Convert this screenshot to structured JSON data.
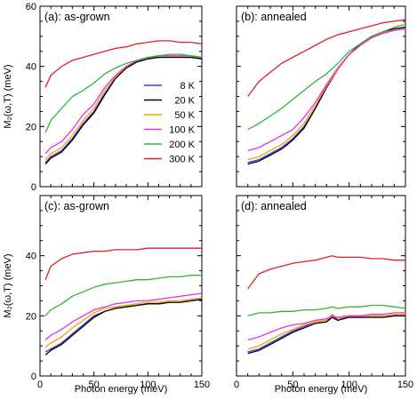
{
  "chart_data": [
    {
      "type": "line",
      "panel_label": "(a): as-grown",
      "xlabel": "",
      "ylabel": "M₂(ω,T) (meV)",
      "xlim": [
        0,
        150
      ],
      "ylim": [
        0,
        60
      ],
      "xticks": [],
      "yticks": [
        0,
        20,
        40,
        60
      ],
      "legend": {
        "placement": "center-right",
        "entries": [
          "8 K",
          "20 K",
          "50 K",
          "100 K",
          "200 K",
          "300 K"
        ]
      },
      "series": [
        {
          "name": "8 K",
          "color": "#3a3adf",
          "x": [
            5,
            10,
            20,
            30,
            40,
            50,
            60,
            70,
            80,
            90,
            100,
            110,
            120,
            130,
            140,
            150
          ],
          "y": [
            8,
            10,
            12,
            16,
            21,
            25,
            31,
            36,
            39.5,
            41.5,
            42.5,
            43,
            43,
            43,
            43,
            42.5
          ]
        },
        {
          "name": "20 K",
          "color": "#000000",
          "x": [
            5,
            10,
            20,
            30,
            40,
            50,
            60,
            70,
            80,
            90,
            100,
            110,
            120,
            130,
            140,
            150
          ],
          "y": [
            7.5,
            9.5,
            11.5,
            15.5,
            20.5,
            24.5,
            30.5,
            36,
            39.5,
            41.5,
            42.5,
            43,
            43,
            43,
            43,
            42.5
          ]
        },
        {
          "name": "50 K",
          "color": "#f5a000",
          "x": [
            5,
            10,
            20,
            30,
            40,
            50,
            60,
            70,
            80,
            90,
            100,
            110,
            120,
            130,
            140,
            150
          ],
          "y": [
            9,
            11,
            13,
            17,
            22,
            26,
            32,
            36.5,
            40,
            42,
            43,
            43.5,
            43.5,
            43.5,
            43.5,
            43
          ]
        },
        {
          "name": "100 K",
          "color": "#ee2ee2",
          "x": [
            5,
            10,
            20,
            30,
            40,
            50,
            60,
            70,
            80,
            90,
            100,
            110,
            120,
            130,
            140,
            150
          ],
          "y": [
            11,
            13,
            15,
            19,
            24,
            27.5,
            33,
            37,
            40,
            42,
            43,
            43.5,
            43.5,
            43.5,
            43.5,
            43
          ]
        },
        {
          "name": "200 K",
          "color": "#2db82d",
          "x": [
            5,
            10,
            20,
            30,
            40,
            50,
            60,
            70,
            80,
            90,
            100,
            110,
            120,
            130,
            140,
            150
          ],
          "y": [
            18,
            22,
            26,
            30,
            32,
            34.5,
            37.5,
            39.5,
            41,
            42,
            43,
            43.5,
            44,
            44,
            43.5,
            43
          ]
        },
        {
          "name": "300 K",
          "color": "#e02020",
          "x": [
            5,
            10,
            20,
            30,
            40,
            50,
            60,
            70,
            80,
            90,
            100,
            110,
            120,
            130,
            140,
            150
          ],
          "y": [
            33,
            37,
            40,
            42,
            43,
            44,
            45,
            46,
            46.5,
            47.5,
            48,
            48.5,
            48.5,
            48,
            48,
            47.5
          ]
        }
      ]
    },
    {
      "type": "line",
      "panel_label": "(b): annealed",
      "xlabel": "",
      "ylabel": "",
      "xlim": [
        0,
        150
      ],
      "ylim": [
        0,
        60
      ],
      "xticks": [],
      "yticks": [],
      "series": [
        {
          "name": "8 K",
          "color": "#3a3adf",
          "x": [
            10,
            20,
            30,
            40,
            50,
            60,
            70,
            80,
            90,
            100,
            110,
            120,
            130,
            140,
            150
          ],
          "y": [
            8,
            9,
            11,
            13,
            16,
            20,
            26,
            33,
            39,
            44,
            47,
            49.5,
            51,
            52,
            52.5
          ]
        },
        {
          "name": "20 K",
          "color": "#000000",
          "x": [
            10,
            20,
            30,
            40,
            50,
            60,
            70,
            80,
            90,
            100,
            110,
            120,
            130,
            140,
            150
          ],
          "y": [
            7.5,
            8.5,
            10.5,
            12.5,
            15.5,
            19.5,
            26,
            33,
            39,
            44,
            47.5,
            50,
            51.5,
            52.5,
            53
          ]
        },
        {
          "name": "50 K",
          "color": "#f5a000",
          "x": [
            10,
            20,
            30,
            40,
            50,
            60,
            70,
            80,
            90,
            100,
            110,
            120,
            130,
            140,
            150
          ],
          "y": [
            9,
            10,
            12,
            14,
            17,
            21,
            27,
            33.5,
            39,
            44,
            47,
            49.5,
            51,
            52,
            52.5
          ]
        },
        {
          "name": "100 K",
          "color": "#ee2ee2",
          "x": [
            10,
            20,
            30,
            40,
            50,
            60,
            70,
            80,
            90,
            100,
            110,
            120,
            130,
            140,
            150
          ],
          "y": [
            12,
            13,
            15,
            17,
            19,
            23,
            28,
            34,
            39.5,
            44,
            47,
            49.5,
            51,
            52,
            52.5
          ]
        },
        {
          "name": "200 K",
          "color": "#2db82d",
          "x": [
            10,
            20,
            30,
            40,
            50,
            60,
            70,
            80,
            90,
            100,
            110,
            120,
            130,
            140,
            150
          ],
          "y": [
            19,
            21,
            23.5,
            26,
            29,
            32,
            35,
            37.5,
            41,
            45,
            47.5,
            50,
            51.5,
            53,
            54
          ]
        },
        {
          "name": "300 K",
          "color": "#e02020",
          "x": [
            10,
            20,
            30,
            40,
            50,
            60,
            70,
            80,
            90,
            100,
            110,
            120,
            130,
            140,
            150
          ],
          "y": [
            30,
            35,
            38,
            41,
            43,
            45,
            47,
            49,
            50.5,
            51.5,
            52.5,
            53.5,
            54.5,
            55,
            55.5
          ]
        }
      ]
    },
    {
      "type": "line",
      "panel_label": "(c): as-grown",
      "xlabel": "Photon energy (meV)",
      "ylabel": "M₂(ω,T) (meV)",
      "xlim": [
        0,
        150
      ],
      "ylim": [
        0,
        60
      ],
      "xticks": [
        0,
        50,
        100,
        150
      ],
      "yticks": [
        0,
        20,
        40
      ],
      "series": [
        {
          "name": "8 K",
          "color": "#3a3adf",
          "x": [
            5,
            10,
            20,
            30,
            40,
            50,
            60,
            70,
            80,
            90,
            100,
            110,
            120,
            130,
            140,
            150
          ],
          "y": [
            8,
            9,
            11,
            14,
            17,
            20,
            21.5,
            22.5,
            23,
            23.5,
            24,
            24,
            24.5,
            24.5,
            25,
            25.5
          ]
        },
        {
          "name": "20 K",
          "color": "#000000",
          "x": [
            5,
            10,
            20,
            30,
            40,
            50,
            60,
            70,
            80,
            90,
            100,
            110,
            120,
            130,
            140,
            150
          ],
          "y": [
            7,
            8.5,
            10.5,
            13.5,
            16.5,
            19.5,
            21.5,
            22.5,
            23,
            23.5,
            24,
            24,
            24.5,
            24.5,
            25,
            25.5
          ]
        },
        {
          "name": "50 K",
          "color": "#f5a000",
          "x": [
            5,
            10,
            20,
            30,
            40,
            50,
            60,
            70,
            80,
            90,
            100,
            110,
            120,
            130,
            140,
            150
          ],
          "y": [
            9.5,
            11,
            13,
            16,
            18.5,
            21,
            22.5,
            23,
            23.5,
            24,
            24.5,
            24.5,
            25,
            25,
            25.5,
            26
          ]
        },
        {
          "name": "100 K",
          "color": "#ee2ee2",
          "x": [
            5,
            10,
            20,
            30,
            40,
            50,
            60,
            70,
            80,
            90,
            100,
            110,
            120,
            130,
            140,
            150
          ],
          "y": [
            12,
            13.5,
            15.5,
            18,
            20,
            22,
            23,
            24,
            24.5,
            25,
            25,
            25.5,
            26,
            26.5,
            27,
            27.5
          ]
        },
        {
          "name": "200 K",
          "color": "#2db82d",
          "x": [
            5,
            10,
            20,
            30,
            40,
            50,
            60,
            70,
            80,
            90,
            100,
            110,
            120,
            130,
            140,
            150
          ],
          "y": [
            20,
            22,
            24,
            26.5,
            28,
            29.5,
            30.5,
            31,
            31.5,
            32,
            32,
            32.5,
            33,
            33,
            33.5,
            33.5
          ]
        },
        {
          "name": "300 K",
          "color": "#e02020",
          "x": [
            5,
            10,
            20,
            30,
            40,
            50,
            60,
            70,
            80,
            90,
            100,
            110,
            120,
            130,
            140,
            150
          ],
          "y": [
            32,
            36.5,
            39,
            40.5,
            41,
            41.5,
            41.5,
            42,
            42,
            42,
            42.5,
            42.5,
            42.5,
            42.5,
            42.5,
            42.5
          ]
        }
      ]
    },
    {
      "type": "line",
      "panel_label": "(d): annealed",
      "xlabel": "Photon energy (meV)",
      "ylabel": "",
      "xlim": [
        0,
        150
      ],
      "ylim": [
        0,
        60
      ],
      "xticks": [
        0,
        50,
        100,
        150
      ],
      "yticks": [],
      "series": [
        {
          "name": "8 K",
          "color": "#3a3adf",
          "x": [
            10,
            20,
            30,
            40,
            50,
            60,
            70,
            80,
            85,
            90,
            100,
            110,
            120,
            130,
            140,
            150
          ],
          "y": [
            8,
            9,
            11,
            13,
            15,
            16.5,
            18,
            18.5,
            19.5,
            19,
            19.5,
            19.5,
            19.5,
            19.5,
            20,
            20
          ]
        },
        {
          "name": "20 K",
          "color": "#000000",
          "x": [
            10,
            20,
            30,
            40,
            50,
            60,
            70,
            80,
            85,
            90,
            100,
            110,
            120,
            130,
            140,
            150
          ],
          "y": [
            7.5,
            8.5,
            10.5,
            12.5,
            14.5,
            16,
            17.5,
            18,
            19.5,
            18.5,
            19.5,
            19.5,
            19.5,
            19.5,
            20,
            20
          ]
        },
        {
          "name": "50 K",
          "color": "#f5a000",
          "x": [
            10,
            20,
            30,
            40,
            50,
            60,
            70,
            80,
            85,
            90,
            100,
            110,
            120,
            130,
            140,
            150
          ],
          "y": [
            9,
            10,
            12,
            14,
            15.5,
            17,
            18,
            18.5,
            20.5,
            19,
            20,
            20,
            20,
            20,
            20.5,
            20.5
          ]
        },
        {
          "name": "100 K",
          "color": "#ee2ee2",
          "x": [
            10,
            20,
            30,
            40,
            50,
            60,
            70,
            80,
            85,
            90,
            100,
            110,
            120,
            130,
            140,
            150
          ],
          "y": [
            12,
            13,
            14.5,
            16,
            17,
            17.5,
            18.5,
            19,
            20,
            19.5,
            20,
            20,
            20.5,
            20.5,
            21,
            21
          ]
        },
        {
          "name": "200 K",
          "color": "#2db82d",
          "x": [
            10,
            20,
            30,
            40,
            50,
            60,
            70,
            80,
            85,
            90,
            100,
            110,
            120,
            130,
            140,
            150
          ],
          "y": [
            20,
            21,
            21,
            21.5,
            21.5,
            22,
            22,
            22.5,
            23,
            22.5,
            23,
            23,
            23.5,
            23.5,
            23,
            22.5
          ]
        },
        {
          "name": "300 K",
          "color": "#e02020",
          "x": [
            10,
            20,
            30,
            40,
            50,
            60,
            70,
            80,
            85,
            90,
            100,
            110,
            120,
            130,
            140,
            150
          ],
          "y": [
            29,
            34,
            35.5,
            36.5,
            37.5,
            38,
            38.5,
            39.5,
            40,
            39.5,
            39.5,
            39.5,
            39,
            39,
            38.5,
            38.5
          ]
        }
      ]
    }
  ]
}
